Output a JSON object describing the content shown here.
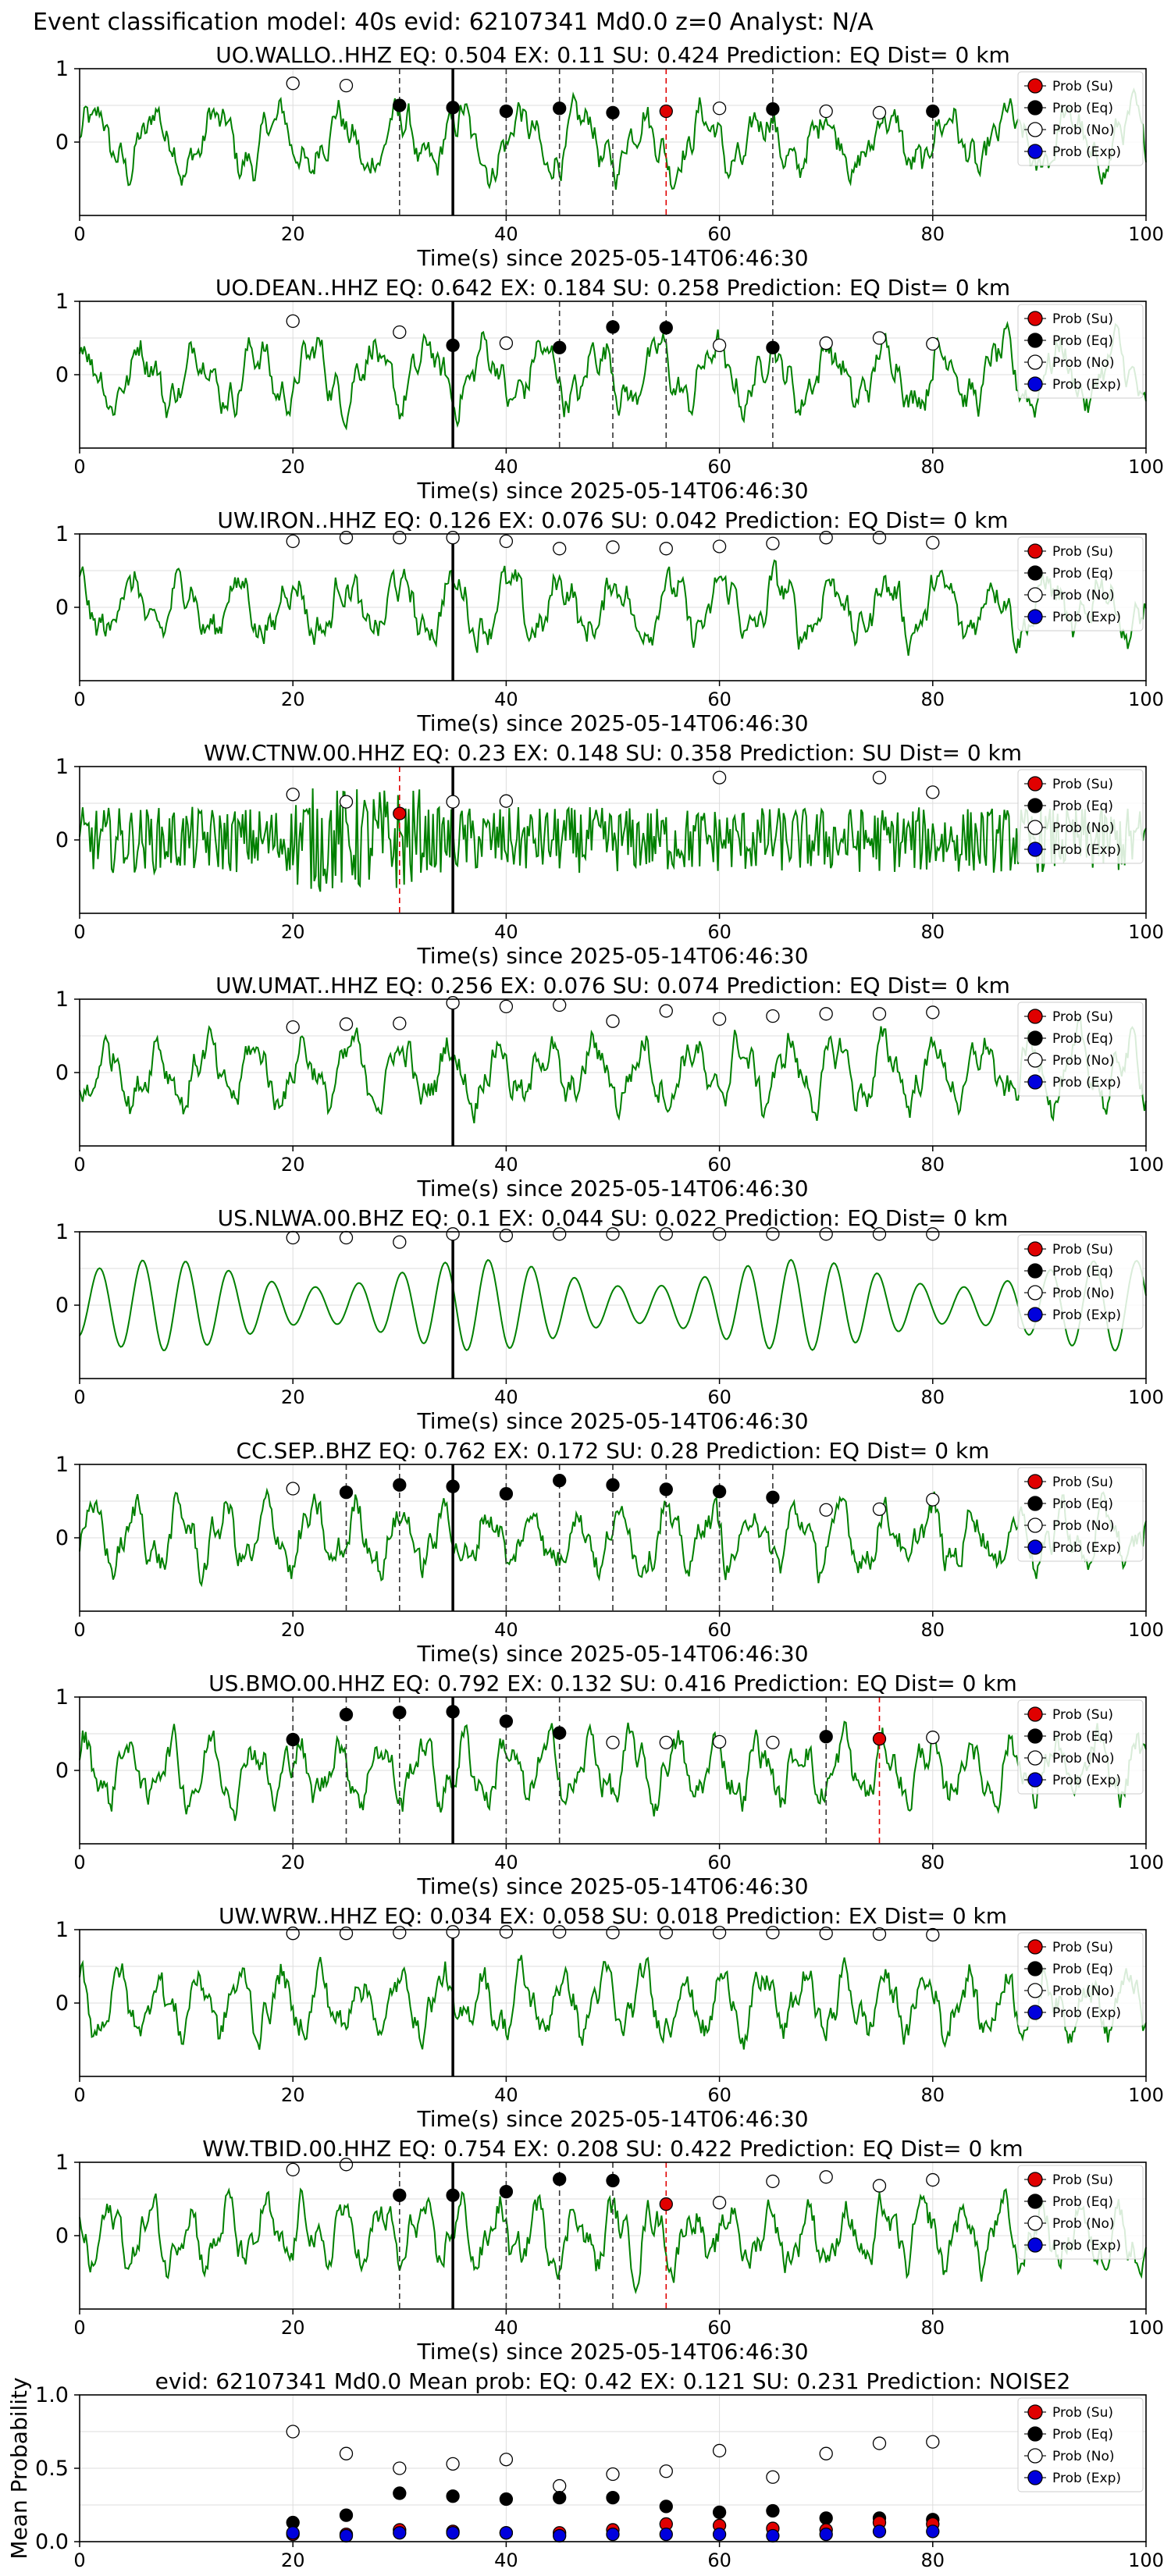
{
  "header": "Event classification model: 40s evid: 62107341 Md0.0 z=0 Analyst: N/A",
  "xlabel": "Time(s) since 2025-05-14T06:46:30",
  "legend": [
    "Prob (Su)",
    "Prob (Eq)",
    "Prob (No)",
    "Prob (Exp)"
  ],
  "colors": {
    "trace": "#008000",
    "su": "#e00000",
    "eq": "#000000",
    "no": "#ffffff",
    "exp": "#0000dd",
    "grid": "#dddddd"
  },
  "chart_data": [
    {
      "type": "line",
      "title": "UO.WALLO..HHZ   EQ: 0.504  EX: 0.11  SU: 0.424   Prediction: EQ    Dist= 0 km",
      "xlim": [
        0,
        100
      ],
      "xticks": [
        0,
        20,
        40,
        60,
        80,
        100
      ],
      "ylim": [
        -1,
        1
      ],
      "yticks": [
        0,
        1
      ],
      "pick_line": 35,
      "eq_lines": [
        30,
        40,
        45,
        50,
        65,
        80
      ],
      "su_lines": [
        55
      ],
      "series": [
        {
          "name": "Prob (Su)",
          "x": [
            55
          ],
          "y": [
            0.42
          ]
        },
        {
          "name": "Prob (Eq)",
          "x": [
            30,
            35,
            40,
            45,
            50,
            65,
            80
          ],
          "y": [
            0.5,
            0.47,
            0.42,
            0.46,
            0.4,
            0.45,
            0.42
          ]
        },
        {
          "name": "Prob (No)",
          "x": [
            20,
            25,
            60,
            70,
            75
          ],
          "y": [
            0.8,
            0.77,
            0.46,
            0.42,
            0.4
          ]
        }
      ]
    },
    {
      "type": "line",
      "title": "UO.DEAN..HHZ   EQ: 0.642  EX: 0.184  SU: 0.258   Prediction: EQ    Dist= 0 km",
      "xlim": [
        0,
        100
      ],
      "xticks": [
        0,
        20,
        40,
        60,
        80,
        100
      ],
      "ylim": [
        -1,
        1
      ],
      "yticks": [
        0,
        1
      ],
      "pick_line": 35,
      "eq_lines": [
        45,
        50,
        55,
        65
      ],
      "su_lines": [],
      "series": [
        {
          "name": "Prob (Eq)",
          "x": [
            35,
            45,
            50,
            55,
            65
          ],
          "y": [
            0.4,
            0.37,
            0.65,
            0.64,
            0.37
          ]
        },
        {
          "name": "Prob (No)",
          "x": [
            20,
            30,
            40,
            60,
            70,
            75,
            80
          ],
          "y": [
            0.73,
            0.58,
            0.43,
            0.4,
            0.43,
            0.5,
            0.42
          ]
        }
      ]
    },
    {
      "type": "line",
      "title": "UW.IRON..HHZ   EQ: 0.126  EX: 0.076  SU: 0.042   Prediction: EQ    Dist= 0 km",
      "xlim": [
        0,
        100
      ],
      "xticks": [
        0,
        20,
        40,
        60,
        80,
        100
      ],
      "ylim": [
        -1,
        1
      ],
      "yticks": [
        0,
        1
      ],
      "pick_line": 35,
      "eq_lines": [],
      "su_lines": [],
      "series": [
        {
          "name": "Prob (No)",
          "x": [
            20,
            25,
            30,
            35,
            40,
            45,
            50,
            55,
            60,
            65,
            70,
            75,
            80
          ],
          "y": [
            0.9,
            0.95,
            0.95,
            0.95,
            0.9,
            0.8,
            0.82,
            0.8,
            0.83,
            0.87,
            0.95,
            0.95,
            0.88
          ]
        }
      ]
    },
    {
      "type": "line",
      "title": "WW.CTNW.00.HHZ   EQ: 0.23  EX: 0.148  SU: 0.358   Prediction: SU    Dist= 0 km",
      "xlim": [
        0,
        100
      ],
      "xticks": [
        0,
        20,
        40,
        60,
        80,
        100
      ],
      "ylim": [
        -1,
        1
      ],
      "yticks": [
        0,
        1
      ],
      "pick_line": 35,
      "eq_lines": [],
      "su_lines": [
        30
      ],
      "series": [
        {
          "name": "Prob (Su)",
          "x": [
            30
          ],
          "y": [
            0.36
          ]
        },
        {
          "name": "Prob (No)",
          "x": [
            20,
            25,
            35,
            40,
            60,
            75,
            80
          ],
          "y": [
            0.62,
            0.52,
            0.52,
            0.53,
            0.85,
            0.85,
            0.65
          ]
        }
      ]
    },
    {
      "type": "line",
      "title": "UW.UMAT..HHZ   EQ: 0.256  EX: 0.076  SU: 0.074   Prediction: EQ    Dist= 0 km",
      "xlim": [
        0,
        100
      ],
      "xticks": [
        0,
        20,
        40,
        60,
        80,
        100
      ],
      "ylim": [
        -1,
        1
      ],
      "yticks": [
        0,
        1
      ],
      "pick_line": 35,
      "eq_lines": [],
      "su_lines": [],
      "series": [
        {
          "name": "Prob (No)",
          "x": [
            20,
            25,
            30,
            35,
            40,
            45,
            50,
            55,
            60,
            65,
            70,
            75,
            80
          ],
          "y": [
            0.62,
            0.66,
            0.67,
            0.95,
            0.9,
            0.92,
            0.7,
            0.84,
            0.73,
            0.77,
            0.8,
            0.8,
            0.82
          ]
        }
      ]
    },
    {
      "type": "line",
      "title": "US.NLWA.00.BHZ   EQ: 0.1  EX: 0.044  SU: 0.022   Prediction: EQ    Dist= 0 km",
      "xlim": [
        0,
        100
      ],
      "xticks": [
        0,
        20,
        40,
        60,
        80,
        100
      ],
      "ylim": [
        -1,
        1
      ],
      "yticks": [
        0,
        1
      ],
      "pick_line": 35,
      "eq_lines": [],
      "su_lines": [],
      "series": [
        {
          "name": "Prob (No)",
          "x": [
            20,
            25,
            30,
            35,
            40,
            45,
            50,
            55,
            60,
            65,
            70,
            75,
            80
          ],
          "y": [
            0.92,
            0.92,
            0.86,
            0.97,
            0.95,
            0.97,
            0.97,
            0.97,
            0.97,
            0.97,
            0.97,
            0.97,
            0.97
          ]
        }
      ]
    },
    {
      "type": "line",
      "title": "CC.SEP..BHZ   EQ: 0.762  EX: 0.172  SU: 0.28   Prediction: EQ    Dist= 0 km",
      "xlim": [
        0,
        100
      ],
      "xticks": [
        0,
        20,
        40,
        60,
        80,
        100
      ],
      "ylim": [
        -1,
        1
      ],
      "yticks": [
        0,
        1
      ],
      "pick_line": 35,
      "eq_lines": [
        25,
        30,
        40,
        45,
        50,
        55,
        60,
        65
      ],
      "su_lines": [],
      "series": [
        {
          "name": "Prob (Eq)",
          "x": [
            25,
            30,
            35,
            40,
            45,
            50,
            55,
            60,
            65
          ],
          "y": [
            0.62,
            0.72,
            0.7,
            0.6,
            0.78,
            0.72,
            0.66,
            0.63,
            0.55
          ]
        },
        {
          "name": "Prob (No)",
          "x": [
            20,
            70,
            75,
            80
          ],
          "y": [
            0.67,
            0.38,
            0.39,
            0.52
          ]
        }
      ]
    },
    {
      "type": "line",
      "title": "US.BMO.00.HHZ   EQ: 0.792  EX: 0.132  SU: 0.416   Prediction: EQ    Dist= 0 km",
      "xlim": [
        0,
        100
      ],
      "xticks": [
        0,
        20,
        40,
        60,
        80,
        100
      ],
      "ylim": [
        -1,
        1
      ],
      "yticks": [
        0,
        1
      ],
      "pick_line": 35,
      "eq_lines": [
        20,
        25,
        30,
        40,
        45,
        70
      ],
      "su_lines": [
        75
      ],
      "series": [
        {
          "name": "Prob (Su)",
          "x": [
            75
          ],
          "y": [
            0.43
          ]
        },
        {
          "name": "Prob (Eq)",
          "x": [
            20,
            25,
            30,
            35,
            40,
            45,
            70
          ],
          "y": [
            0.42,
            0.76,
            0.79,
            0.8,
            0.67,
            0.51,
            0.46
          ]
        },
        {
          "name": "Prob (No)",
          "x": [
            50,
            55,
            60,
            65,
            80
          ],
          "y": [
            0.38,
            0.38,
            0.39,
            0.38,
            0.45
          ]
        }
      ]
    },
    {
      "type": "line",
      "title": "UW.WRW..HHZ   EQ: 0.034  EX: 0.058  SU: 0.018   Prediction: EX    Dist= 0 km",
      "xlim": [
        0,
        100
      ],
      "xticks": [
        0,
        20,
        40,
        60,
        80,
        100
      ],
      "ylim": [
        -1,
        1
      ],
      "yticks": [
        0,
        1
      ],
      "pick_line": 35,
      "eq_lines": [],
      "su_lines": [],
      "series": [
        {
          "name": "Prob (No)",
          "x": [
            20,
            25,
            30,
            35,
            40,
            45,
            50,
            55,
            60,
            65,
            70,
            75,
            80
          ],
          "y": [
            0.95,
            0.95,
            0.96,
            0.97,
            0.97,
            0.97,
            0.96,
            0.96,
            0.96,
            0.96,
            0.95,
            0.94,
            0.93
          ]
        }
      ]
    },
    {
      "type": "line",
      "title": "WW.TBID.00.HHZ   EQ: 0.754  EX: 0.208  SU: 0.422   Prediction: EQ    Dist= 0 km",
      "xlim": [
        0,
        100
      ],
      "xticks": [
        0,
        20,
        40,
        60,
        80,
        100
      ],
      "ylim": [
        -1,
        1
      ],
      "yticks": [
        0,
        1
      ],
      "pick_line": 35,
      "eq_lines": [
        30,
        40,
        45,
        50
      ],
      "su_lines": [
        55
      ],
      "series": [
        {
          "name": "Prob (Su)",
          "x": [
            55
          ],
          "y": [
            0.43
          ]
        },
        {
          "name": "Prob (Eq)",
          "x": [
            30,
            35,
            40,
            45,
            50
          ],
          "y": [
            0.55,
            0.55,
            0.6,
            0.77,
            0.75
          ]
        },
        {
          "name": "Prob (No)",
          "x": [
            20,
            25,
            60,
            65,
            70,
            75,
            80
          ],
          "y": [
            0.9,
            0.97,
            0.45,
            0.74,
            0.8,
            0.68,
            0.76
          ]
        }
      ]
    },
    {
      "type": "scatter",
      "title": "evid: 62107341  Md0.0   Mean prob:   EQ: 0.42  EX: 0.121  SU: 0.231   Prediction: NOISE2",
      "ylabel": "Mean Probability",
      "xlim": [
        0,
        100
      ],
      "xticks": [
        0,
        20,
        40,
        60,
        80,
        100
      ],
      "ylim": [
        0,
        1
      ],
      "yticks": [
        0.0,
        0.5,
        1.0
      ],
      "ytick_labels": [
        "0.0",
        "0.5",
        "1.0"
      ],
      "series": [
        {
          "name": "Prob (No)",
          "x": [
            20,
            25,
            30,
            35,
            40,
            45,
            50,
            55,
            60,
            65,
            70,
            75,
            80
          ],
          "y": [
            0.75,
            0.6,
            0.5,
            0.53,
            0.56,
            0.38,
            0.46,
            0.48,
            0.62,
            0.44,
            0.6,
            0.67,
            0.68
          ]
        },
        {
          "name": "Prob (Eq)",
          "x": [
            20,
            25,
            30,
            35,
            40,
            45,
            50,
            55,
            60,
            65,
            70,
            75,
            80
          ],
          "y": [
            0.13,
            0.18,
            0.33,
            0.31,
            0.29,
            0.3,
            0.3,
            0.24,
            0.2,
            0.21,
            0.16,
            0.16,
            0.15
          ]
        },
        {
          "name": "Prob (Su)",
          "x": [
            20,
            25,
            30,
            35,
            40,
            45,
            50,
            55,
            60,
            65,
            70,
            75,
            80
          ],
          "y": [
            0.05,
            0.05,
            0.08,
            0.07,
            0.06,
            0.06,
            0.08,
            0.12,
            0.11,
            0.09,
            0.08,
            0.13,
            0.12
          ]
        },
        {
          "name": "Prob (Exp)",
          "x": [
            20,
            25,
            30,
            35,
            40,
            45,
            50,
            55,
            60,
            65,
            70,
            75,
            80
          ],
          "y": [
            0.06,
            0.04,
            0.06,
            0.06,
            0.06,
            0.04,
            0.05,
            0.05,
            0.05,
            0.04,
            0.05,
            0.07,
            0.07
          ]
        }
      ]
    }
  ]
}
